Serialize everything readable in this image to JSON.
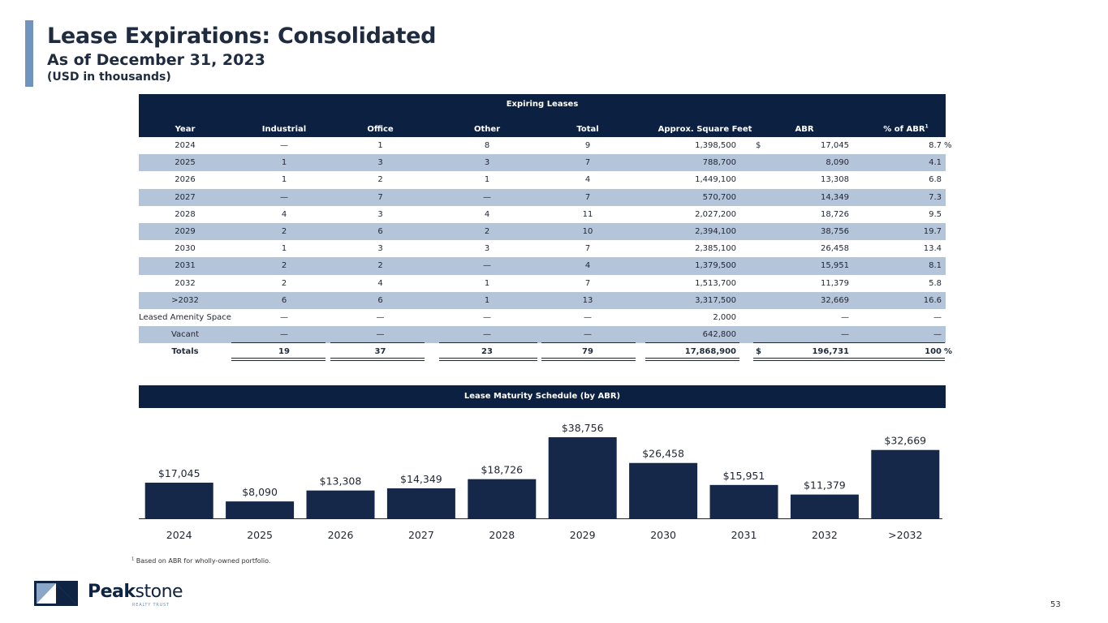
{
  "header": {
    "title": "Lease Expirations: Consolidated",
    "subtitle": "As of December 31, 2023",
    "units": "(USD in thousands)"
  },
  "table": {
    "group_label": "Expiring Leases",
    "columns": {
      "year": "Year",
      "industrial": "Industrial",
      "office": "Office",
      "other": "Other",
      "total": "Total",
      "sqft": "Approx. Square Feet",
      "abr": "ABR",
      "pct_abr": "% of ABR",
      "pct_abr_footnote": "1"
    },
    "rows": [
      {
        "year": "2024",
        "industrial": "—",
        "office": "1",
        "other": "8",
        "total": "9",
        "sqft": "1,398,500",
        "dollar": "$",
        "abr": "17,045",
        "pct": "8.7",
        "pct_sign": "%"
      },
      {
        "year": "2025",
        "industrial": "1",
        "office": "3",
        "other": "3",
        "total": "7",
        "sqft": "788,700",
        "dollar": "",
        "abr": "8,090",
        "pct": "4.1",
        "pct_sign": ""
      },
      {
        "year": "2026",
        "industrial": "1",
        "office": "2",
        "other": "1",
        "total": "4",
        "sqft": "1,449,100",
        "dollar": "",
        "abr": "13,308",
        "pct": "6.8",
        "pct_sign": ""
      },
      {
        "year": "2027",
        "industrial": "—",
        "office": "7",
        "other": "—",
        "total": "7",
        "sqft": "570,700",
        "dollar": "",
        "abr": "14,349",
        "pct": "7.3",
        "pct_sign": ""
      },
      {
        "year": "2028",
        "industrial": "4",
        "office": "3",
        "other": "4",
        "total": "11",
        "sqft": "2,027,200",
        "dollar": "",
        "abr": "18,726",
        "pct": "9.5",
        "pct_sign": ""
      },
      {
        "year": "2029",
        "industrial": "2",
        "office": "6",
        "other": "2",
        "total": "10",
        "sqft": "2,394,100",
        "dollar": "",
        "abr": "38,756",
        "pct": "19.7",
        "pct_sign": ""
      },
      {
        "year": "2030",
        "industrial": "1",
        "office": "3",
        "other": "3",
        "total": "7",
        "sqft": "2,385,100",
        "dollar": "",
        "abr": "26,458",
        "pct": "13.4",
        "pct_sign": ""
      },
      {
        "year": "2031",
        "industrial": "2",
        "office": "2",
        "other": "—",
        "total": "4",
        "sqft": "1,379,500",
        "dollar": "",
        "abr": "15,951",
        "pct": "8.1",
        "pct_sign": ""
      },
      {
        "year": "2032",
        "industrial": "2",
        "office": "4",
        "other": "1",
        "total": "7",
        "sqft": "1,513,700",
        "dollar": "",
        "abr": "11,379",
        "pct": "5.8",
        "pct_sign": ""
      },
      {
        "year": ">2032",
        "industrial": "6",
        "office": "6",
        "other": "1",
        "total": "13",
        "sqft": "3,317,500",
        "dollar": "",
        "abr": "32,669",
        "pct": "16.6",
        "pct_sign": ""
      },
      {
        "year": "Leased Amenity Space",
        "industrial": "—",
        "office": "—",
        "other": "—",
        "total": "—",
        "sqft": "2,000",
        "dollar": "",
        "abr": "—",
        "pct": "—",
        "pct_sign": ""
      },
      {
        "year": "Vacant",
        "industrial": "—",
        "office": "—",
        "other": "—",
        "total": "—",
        "sqft": "642,800",
        "dollar": "",
        "abr": "—",
        "pct": "—",
        "pct_sign": ""
      }
    ],
    "totals": {
      "year": "Totals",
      "industrial": "19",
      "office": "37",
      "other": "23",
      "total": "79",
      "sqft": "17,868,900",
      "dollar": "$",
      "abr": "196,731",
      "pct": "100",
      "pct_sign": "%"
    }
  },
  "chart_data": {
    "type": "bar",
    "title": "Lease Maturity Schedule (by ABR)",
    "categories": [
      "2024",
      "2025",
      "2026",
      "2027",
      "2028",
      "2029",
      "2030",
      "2031",
      "2032",
      ">2032"
    ],
    "values": [
      17045,
      8090,
      13308,
      14349,
      18726,
      38756,
      26458,
      15951,
      11379,
      32669
    ],
    "data_labels": [
      "$17,045",
      "$8,090",
      "$13,308",
      "$14,349",
      "$18,726",
      "$38,756",
      "$26,458",
      "$15,951",
      "$11,379",
      "$32,669"
    ],
    "xlabel": "",
    "ylabel": "",
    "ylim": [
      0,
      40000
    ],
    "grid": false,
    "bar_color": "#16284a"
  },
  "footnote": {
    "marker": "1",
    "text": "Based on ABR for wholly-owned portfolio."
  },
  "brand": {
    "name_bold": "Peak",
    "name_light": "stone",
    "tagline": "REALTY TRUST"
  },
  "page_number": "53"
}
